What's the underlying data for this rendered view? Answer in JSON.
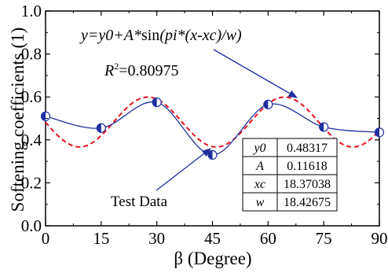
{
  "chart_data": {
    "type": "scatter",
    "xlabel": "β (Degree)",
    "ylabel": "Softening coefficients (1)",
    "xlim": [
      0,
      90
    ],
    "ylim": [
      0.0,
      1.0
    ],
    "x_ticks": [
      0,
      15,
      30,
      45,
      60,
      75,
      90
    ],
    "y_ticks": [
      0.0,
      0.2,
      0.4,
      0.6,
      0.8,
      1.0
    ],
    "x_tick_labels": [
      "0",
      "15",
      "30",
      "45",
      "60",
      "75",
      "90"
    ],
    "y_tick_labels": [
      "0.0",
      "0.2",
      "0.4",
      "0.6",
      "0.8",
      "1.0"
    ],
    "grid": false,
    "series": [
      {
        "name": "Test Data",
        "kind": "points",
        "x": [
          0,
          15,
          30,
          45,
          60,
          75,
          90
        ],
        "y": [
          0.51,
          0.455,
          0.575,
          0.33,
          0.565,
          0.46,
          0.435
        ],
        "color": "#1f2fa0"
      },
      {
        "kind": "smooth-line",
        "x": [
          0,
          15,
          30,
          45,
          60,
          75,
          90
        ],
        "y": [
          0.51,
          0.455,
          0.575,
          0.33,
          0.565,
          0.46,
          0.435
        ],
        "color": "#1f2fa0"
      },
      {
        "kind": "fit-line",
        "model": "y=y0+A*sin(pi*(x-xc)/w)",
        "params": {
          "y0": 0.48317,
          "A": 0.11618,
          "xc": 18.37038,
          "w": 18.42675
        },
        "color": "#e8121e"
      }
    ],
    "annotations": {
      "equation": "y=y0+A*sin(pi*(x-xc)/w)",
      "r2_label": "R",
      "r2_sup": "2",
      "r2_value": "=0.80975",
      "test_data_label": "Test Data"
    },
    "param_table": [
      {
        "name": "y0",
        "value": "0.48317"
      },
      {
        "name": "A",
        "value": "0.11618"
      },
      {
        "name": "xc",
        "value": "18.37038"
      },
      {
        "name": "w",
        "value": "18.42675"
      }
    ]
  }
}
